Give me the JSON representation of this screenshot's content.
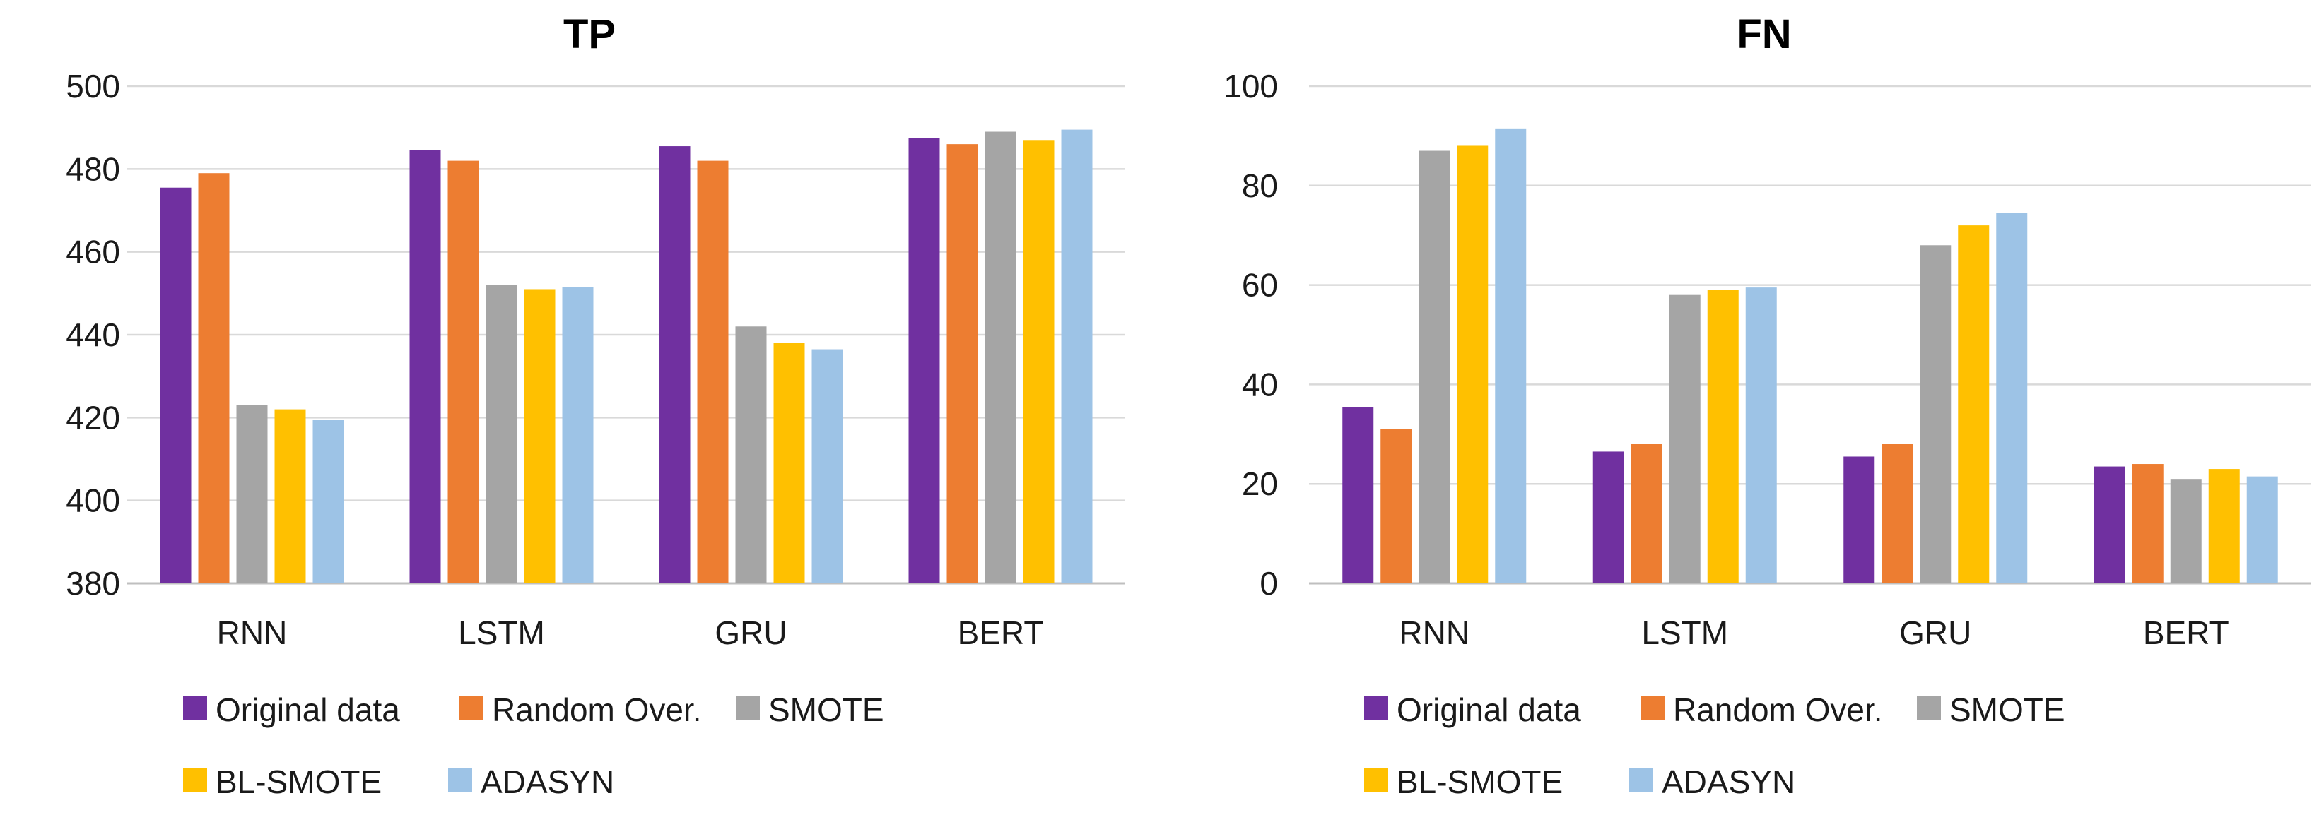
{
  "chart_data": [
    {
      "type": "bar",
      "title": "TP",
      "xlabel": "",
      "ylabel": "",
      "ylim": [
        380,
        500
      ],
      "yticks": [
        380,
        400,
        420,
        440,
        460,
        480,
        500
      ],
      "categories": [
        "RNN",
        "LSTM",
        "GRU",
        "BERT"
      ],
      "grid": true,
      "legend": "bottom",
      "series": [
        {
          "name": "Original data",
          "color": "#7030A0",
          "values": [
            475.5,
            484.5,
            485.5,
            487.5
          ]
        },
        {
          "name": "Random Over.",
          "color": "#ED7D31",
          "values": [
            479,
            482,
            482,
            486
          ]
        },
        {
          "name": "SMOTE",
          "color": "#A5A5A5",
          "values": [
            423,
            452,
            442,
            489
          ]
        },
        {
          "name": "BL-SMOTE",
          "color": "#FFC000",
          "values": [
            422,
            451,
            438,
            487
          ]
        },
        {
          "name": "ADASYN",
          "color": "#9DC3E6",
          "values": [
            419.5,
            451.5,
            436.5,
            489.5
          ]
        }
      ]
    },
    {
      "type": "bar",
      "title": "FN",
      "xlabel": "",
      "ylabel": "",
      "ylim": [
        0,
        100
      ],
      "yticks": [
        0,
        20,
        40,
        60,
        80,
        100
      ],
      "categories": [
        "RNN",
        "LSTM",
        "GRU",
        "BERT"
      ],
      "grid": true,
      "legend": "bottom",
      "series": [
        {
          "name": "Original data",
          "color": "#7030A0",
          "values": [
            35.5,
            26.5,
            25.5,
            23.5
          ]
        },
        {
          "name": "Random Over.",
          "color": "#ED7D31",
          "values": [
            31,
            28,
            28,
            24
          ]
        },
        {
          "name": "SMOTE",
          "color": "#A5A5A5",
          "values": [
            87,
            58,
            68,
            21
          ]
        },
        {
          "name": "BL-SMOTE",
          "color": "#FFC000",
          "values": [
            88,
            59,
            72,
            23
          ]
        },
        {
          "name": "ADASYN",
          "color": "#9DC3E6",
          "values": [
            91.5,
            59.5,
            74.5,
            21.5
          ]
        }
      ]
    }
  ]
}
